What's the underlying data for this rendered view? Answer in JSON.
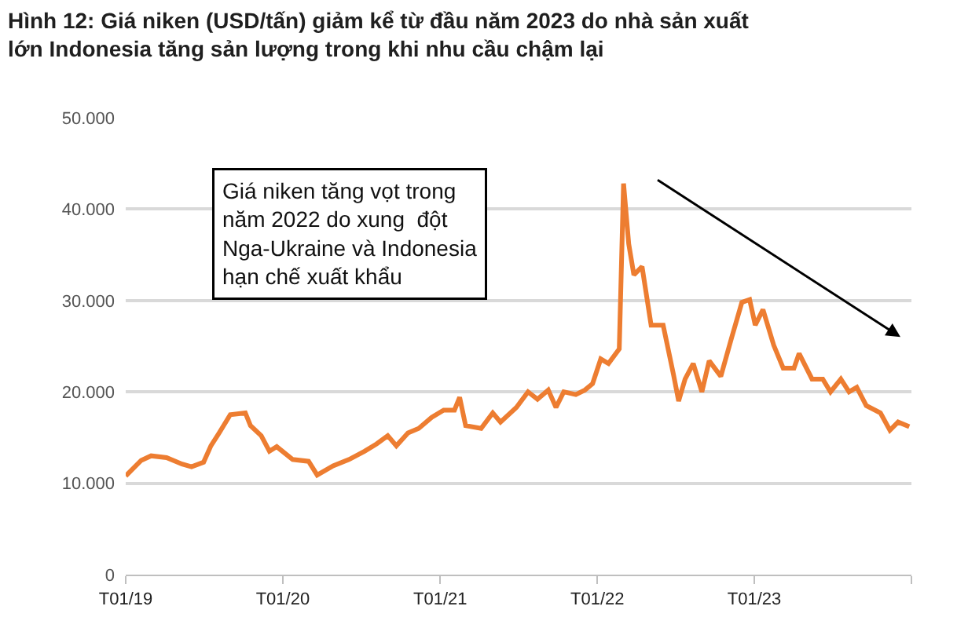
{
  "chart_data": {
    "type": "line",
    "title": "Hình 12: Giá niken (USD/tấn) giảm kể từ đầu năm 2023 do nhà sản xuất\nlớn Indonesia tăng sản lượng trong khi nhu cầu chậm lại",
    "annotations": [
      "Giá niken tăng vọt trong\nnăm 2022 do xung  đột\nNga-Ukraine và Indonesia\nhạn chế xuất khẩu"
    ],
    "x": [
      "2019-01-01",
      "2019-02-06",
      "2019-03-01",
      "2019-04-06",
      "2019-05-12",
      "2019-06-03",
      "2019-07-01",
      "2019-07-18",
      "2019-08-06",
      "2019-09-01",
      "2019-10-06",
      "2019-10-18",
      "2019-11-12",
      "2019-12-01",
      "2019-12-18",
      "2020-01-24",
      "2020-03-01",
      "2020-03-21",
      "2020-04-27",
      "2020-06-03",
      "2020-07-09",
      "2020-08-06",
      "2020-09-01",
      "2020-09-21",
      "2020-10-18",
      "2020-11-12",
      "2020-12-12",
      "2021-01-09",
      "2021-02-03",
      "2021-02-15",
      "2021-03-01",
      "2021-04-06",
      "2021-05-03",
      "2021-05-21",
      "2021-06-27",
      "2021-07-24",
      "2021-08-15",
      "2021-09-09",
      "2021-09-27",
      "2021-10-15",
      "2021-11-12",
      "2021-12-03",
      "2021-12-21",
      "2022-01-09",
      "2022-01-27",
      "2022-02-21",
      "2022-03-03",
      "2022-03-15",
      "2022-03-27",
      "2022-04-15",
      "2022-05-06",
      "2022-06-03",
      "2022-06-27",
      "2022-07-09",
      "2022-07-24",
      "2022-08-12",
      "2022-09-01",
      "2022-09-18",
      "2022-10-15",
      "2022-11-09",
      "2022-12-03",
      "2022-12-21",
      "2023-01-03",
      "2023-01-21",
      "2023-02-15",
      "2023-03-09",
      "2023-04-03",
      "2023-04-15",
      "2023-05-15",
      "2023-06-09",
      "2023-06-27",
      "2023-07-21",
      "2023-08-09",
      "2023-08-27",
      "2023-09-18",
      "2023-10-21",
      "2023-11-12",
      "2023-12-01",
      "2023-12-27"
    ],
    "series": [
      {
        "color": "#ed7d31",
        "values": [
          10800,
          12500,
          13000,
          12800,
          12100,
          11800,
          12300,
          14100,
          15500,
          17500,
          17700,
          16300,
          15200,
          13500,
          14000,
          12600,
          12400,
          10900,
          11900,
          12600,
          13500,
          14300,
          15200,
          14100,
          15500,
          16000,
          17200,
          18000,
          18000,
          19400,
          16300,
          16000,
          17700,
          16700,
          18300,
          20000,
          19200,
          20200,
          18300,
          20000,
          19700,
          20200,
          20900,
          23600,
          23100,
          24700,
          42800,
          36200,
          32800,
          33700,
          27300,
          27300,
          21900,
          19000,
          21400,
          23100,
          20000,
          23400,
          21700,
          25900,
          29800,
          30100,
          27300,
          29000,
          25100,
          22600,
          22600,
          24200,
          21400,
          21400,
          20000,
          21400,
          20000,
          20500,
          18500,
          17700,
          15800,
          16700,
          16200
        ]
      }
    ],
    "xlim": [
      "2019-01-01",
      "2024-01-01"
    ],
    "xticks": [
      {
        "value": "2019-01-01",
        "label": "T01/19"
      },
      {
        "value": "2020-01-01",
        "label": "T01/20"
      },
      {
        "value": "2021-01-01",
        "label": "T01/21"
      },
      {
        "value": "2022-01-01",
        "label": "T01/22"
      },
      {
        "value": "2023-01-01",
        "label": "T01/23"
      },
      {
        "value": "2024-01-01",
        "label": null
      }
    ],
    "ylim": [
      0,
      50000
    ],
    "yticks": [
      0,
      {
        "value": 10000,
        "label": "10.000"
      },
      {
        "value": 20000,
        "label": "20.000"
      },
      {
        "value": 30000,
        "label": "30.000"
      },
      {
        "value": 40000,
        "label": "40.000"
      },
      {
        "value": 50000,
        "label": "50.000"
      }
    ],
    "grid": "y",
    "marker": "none",
    "line_style": "solid"
  }
}
